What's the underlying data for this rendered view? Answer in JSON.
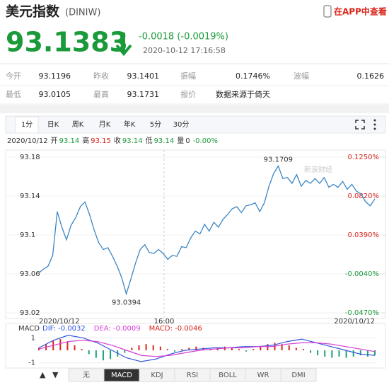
{
  "header": {
    "title": "美元指数",
    "code": "(DINIW)",
    "app_link": "在APP中查看"
  },
  "quote": {
    "price": "93.1383",
    "change": "-0.0018 (-0.0019%)",
    "time": "2020-10-12 17:16:58",
    "color": "#1a9a3a"
  },
  "stats": [
    [
      "今开",
      "93.1196",
      "昨收",
      "93.1401",
      "振幅",
      "0.1746%",
      "波幅",
      "0.1626"
    ],
    [
      "最低",
      "93.0105",
      "最高",
      "93.1731",
      "报价",
      "数据来源于倚天"
    ]
  ],
  "tabs": [
    "1分",
    "日K",
    "周K",
    "月K",
    "年K",
    "5分",
    "30分"
  ],
  "active_tab": 0,
  "info": {
    "date": "2020/10/12",
    "items": [
      {
        "label": "开",
        "value": "93.14",
        "color": "#1a9a3a"
      },
      {
        "label": "高",
        "value": "93.15",
        "color": "#d9261c"
      },
      {
        "label": "收",
        "value": "93.14",
        "color": "#1a9a3a"
      },
      {
        "label": "低",
        "value": "93.14",
        "color": "#1a9a3a"
      },
      {
        "label": "量",
        "value": "0",
        "color": "#333333"
      }
    ],
    "change": "-0.00%",
    "change_color": "#1a9a3a"
  },
  "chart": {
    "type": "line",
    "color": "#3a86c6",
    "values": [
      93.061,
      93.065,
      93.068,
      93.079,
      93.124,
      93.108,
      93.095,
      93.11,
      93.118,
      93.129,
      93.134,
      93.121,
      93.105,
      93.092,
      93.085,
      93.087,
      93.078,
      93.068,
      93.056,
      93.0394,
      93.055,
      93.071,
      93.085,
      93.09,
      93.082,
      93.081,
      93.085,
      93.081,
      93.075,
      93.079,
      93.078,
      93.088,
      93.087,
      93.097,
      93.104,
      93.101,
      93.111,
      93.104,
      93.113,
      93.108,
      93.116,
      93.121,
      93.127,
      93.129,
      93.123,
      93.13,
      93.131,
      93.133,
      93.124,
      93.133,
      93.15,
      93.163,
      93.1709,
      93.158,
      93.159,
      93.153,
      93.162,
      93.15,
      93.156,
      93.153,
      93.158,
      93.153,
      93.159,
      93.149,
      93.152,
      93.149,
      93.155,
      93.147,
      93.152,
      93.145,
      93.142,
      93.134,
      93.13,
      93.137
    ],
    "ylim": [
      93.02,
      93.18
    ],
    "yticks": [
      93.18,
      93.14,
      93.1,
      93.06,
      93.02
    ],
    "y2lim": [
      -0.047,
      0.125
    ],
    "y2ticks": [
      {
        "value": 0.125,
        "label": "0.1250%"
      },
      {
        "value": 0.082,
        "label": "0.0820%"
      },
      {
        "value": 0.039,
        "label": "0.0390%"
      },
      {
        "value": -0.004,
        "label": "-0.0040%"
      },
      {
        "value": -0.047,
        "label": "-0.0470%"
      }
    ],
    "x_labels": [
      "2020/10/12",
      "16:00",
      "2020/10/12"
    ],
    "watermark": "新浪财经"
  },
  "macd": {
    "title": "MACD",
    "legend": [
      {
        "text": "DIF: -0.0032",
        "color": "#3355dd"
      },
      {
        "text": "DEA: -0.0009",
        "color": "#d63cd6"
      },
      {
        "text": "MACD: -0.0046",
        "color": "#d9261c"
      }
    ],
    "ylim": [
      -1.3,
      1.3
    ],
    "yticks": [
      1,
      -1
    ],
    "dif": [
      0.2,
      0.8,
      1.2,
      1.0,
      0.6,
      0,
      -0.6,
      -0.9,
      -0.7,
      -0.3,
      0,
      0.1,
      0.2,
      0.2,
      0.3,
      0.3,
      0.4,
      0.7,
      0.9,
      0.6,
      0.3,
      0,
      -0.3,
      -0.4
    ],
    "dea": [
      0.1,
      0.4,
      0.7,
      0.8,
      0.7,
      0.4,
      0,
      -0.4,
      -0.5,
      -0.4,
      -0.2,
      0,
      0.1,
      0.2,
      0.2,
      0.3,
      0.3,
      0.5,
      0.6,
      0.6,
      0.5,
      0.3,
      0.1,
      -0.1
    ],
    "hist": [
      0.2,
      0.5,
      0.8,
      0.9,
      0.7,
      0.4,
      0.1,
      -0.3,
      -0.6,
      -0.8,
      -0.7,
      -0.5,
      -0.2,
      0.2,
      0.4,
      0.5,
      0.4,
      0.3,
      0.1,
      -0.1,
      0.1,
      0.2,
      0.3,
      0.2,
      0.1,
      0.2,
      0.3,
      0.2,
      0.1,
      -0.1,
      0.1,
      0.3,
      0.5,
      0.6,
      0.5,
      0.4,
      0.2,
      0.1,
      -0.2,
      -0.4,
      -0.5,
      -0.6,
      -0.5,
      -0.6,
      -0.5,
      -0.4,
      -0.5,
      -0.4
    ],
    "up_color": "#d9261c",
    "down_color": "#1aa37a"
  },
  "indicators": [
    "无",
    "MACD",
    "KDJ",
    "RSI",
    "BOLL",
    "WR",
    "DMI"
  ],
  "active_indicator": 1
}
